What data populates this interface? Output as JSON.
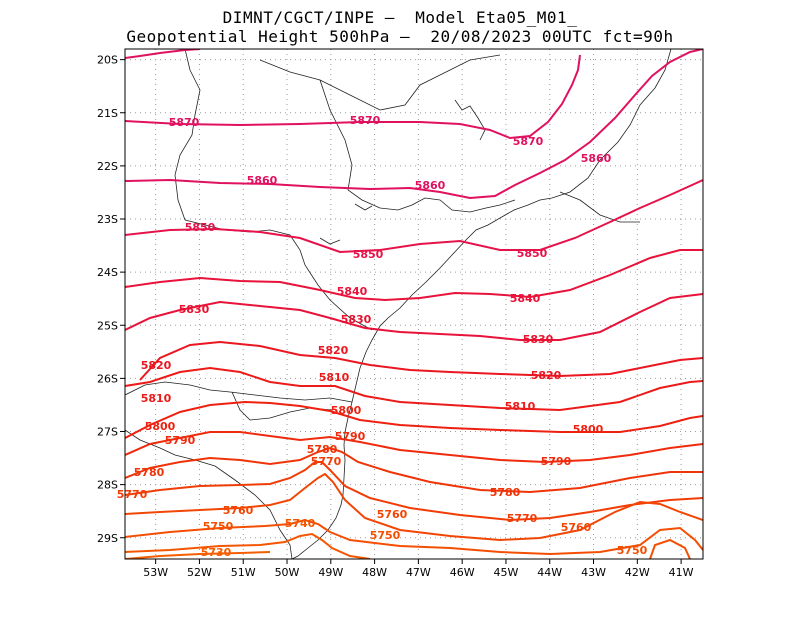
{
  "title": {
    "line1": "DIMNT/CGCT/INPE –  Model Eta05_M01_",
    "line2": "Geopotential Height 500hPa –  20/08/2023 00UTC fct=90h"
  },
  "map": {
    "lon_range": [
      -53.7,
      -40.5
    ],
    "lat_range": [
      -29.4,
      -19.8
    ],
    "y_ticks": [
      "20S",
      "21S",
      "22S",
      "23S",
      "24S",
      "25S",
      "26S",
      "27S",
      "28S",
      "29S"
    ],
    "x_ticks": [
      "53W",
      "52W",
      "51W",
      "50W",
      "49W",
      "48W",
      "47W",
      "46W",
      "45W",
      "44W",
      "43W",
      "42W",
      "41W"
    ],
    "grid": "dotted"
  },
  "contour_labels": [
    {
      "text": "5870",
      "color": "#e0115f"
    },
    {
      "text": "5870",
      "color": "#e0115f"
    },
    {
      "text": "5870",
      "color": "#e0115f"
    },
    {
      "text": "5860",
      "color": "#e0115f"
    },
    {
      "text": "5860",
      "color": "#e0115f"
    },
    {
      "text": "5860",
      "color": "#e0115f"
    },
    {
      "text": "5850",
      "color": "#e6124a"
    },
    {
      "text": "5850",
      "color": "#e6124a"
    },
    {
      "text": "5850",
      "color": "#e6124a"
    },
    {
      "text": "5840",
      "color": "#e8123a"
    },
    {
      "text": "5840",
      "color": "#e8123a"
    },
    {
      "text": "5830",
      "color": "#e8122e"
    },
    {
      "text": "5830",
      "color": "#e8122e"
    },
    {
      "text": "5830",
      "color": "#e8122e"
    },
    {
      "text": "5820",
      "color": "#ea1620"
    },
    {
      "text": "5820",
      "color": "#ea1620"
    },
    {
      "text": "5820",
      "color": "#ea1620"
    },
    {
      "text": "5810",
      "color": "#ec1a18"
    },
    {
      "text": "5810",
      "color": "#ec1a18"
    },
    {
      "text": "5810",
      "color": "#ec1a18"
    },
    {
      "text": "5800",
      "color": "#ee2010"
    },
    {
      "text": "5800",
      "color": "#ee2010"
    },
    {
      "text": "5800",
      "color": "#ee2010"
    },
    {
      "text": "5790",
      "color": "#f02a0c"
    },
    {
      "text": "5790",
      "color": "#f02a0c"
    },
    {
      "text": "5790",
      "color": "#f02a0c"
    },
    {
      "text": "5780",
      "color": "#f03408"
    },
    {
      "text": "5780",
      "color": "#f03408"
    },
    {
      "text": "5780",
      "color": "#f03408"
    },
    {
      "text": "5770",
      "color": "#f23c06"
    },
    {
      "text": "5770",
      "color": "#f23c06"
    },
    {
      "text": "5770",
      "color": "#f23c06"
    },
    {
      "text": "5760",
      "color": "#f24604"
    },
    {
      "text": "5760",
      "color": "#f24604"
    },
    {
      "text": "5760",
      "color": "#f24604"
    },
    {
      "text": "5750",
      "color": "#f44e02"
    },
    {
      "text": "5750",
      "color": "#f44e02"
    },
    {
      "text": "5750",
      "color": "#f44e02"
    },
    {
      "text": "5740",
      "color": "#f45600"
    },
    {
      "text": "5730",
      "color": "#f45e00"
    }
  ]
}
